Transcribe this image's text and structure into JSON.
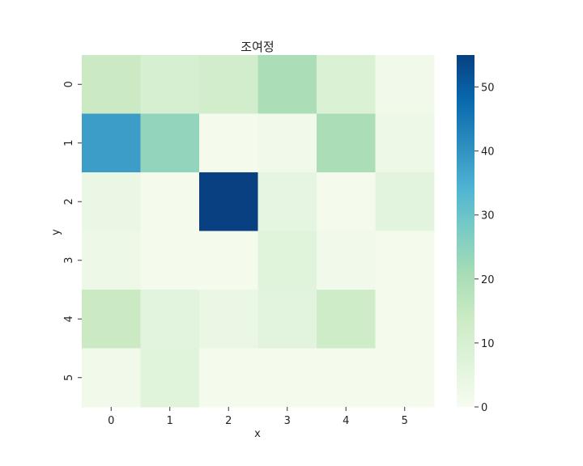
{
  "chart_data": {
    "type": "heatmap",
    "title": "조여정",
    "xlabel": "x",
    "ylabel": "y",
    "x_categories": [
      "0",
      "1",
      "2",
      "3",
      "4",
      "5"
    ],
    "y_categories": [
      "0",
      "1",
      "2",
      "3",
      "4",
      "5"
    ],
    "values": [
      [
        14,
        10,
        12,
        20,
        9,
        2
      ],
      [
        38,
        24,
        1,
        2,
        20,
        3
      ],
      [
        4,
        1,
        55,
        5,
        1,
        6
      ],
      [
        3,
        1,
        1,
        7,
        2,
        1
      ],
      [
        14,
        6,
        4,
        6,
        13,
        1
      ],
      [
        2,
        7,
        1,
        1,
        1,
        1
      ]
    ],
    "colorbar": {
      "range": [
        0,
        55
      ],
      "ticks": [
        "0",
        "10",
        "20",
        "30",
        "40",
        "50"
      ],
      "colormap": "GnBu"
    },
    "grid": false
  }
}
